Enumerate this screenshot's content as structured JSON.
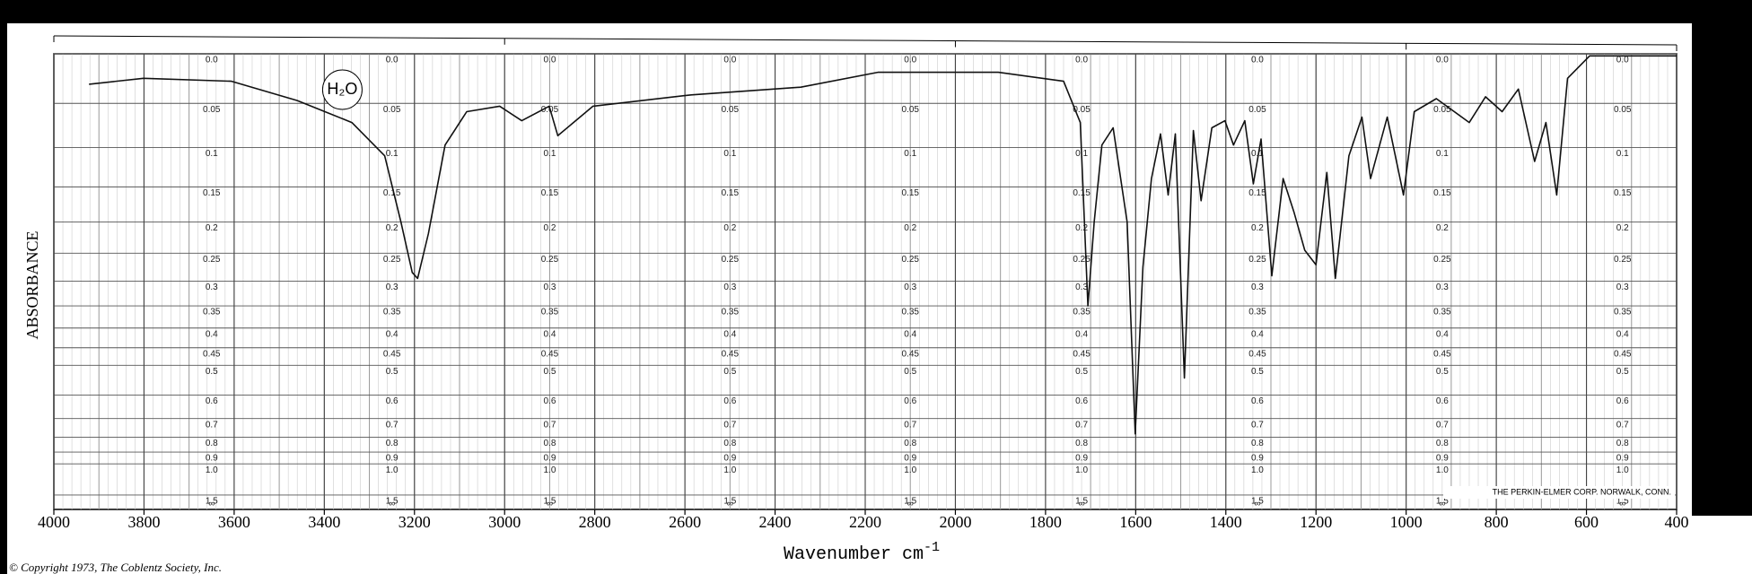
{
  "chart_data": {
    "type": "line",
    "title": "ABSORBANCE",
    "y_axis_label": "ABSORBANCE",
    "x_label": "Wavenumber cm",
    "x_label_sup": "-1",
    "annotation": "H₂O",
    "footer": "© Copyright 1973, The Coblentz Society, Inc.",
    "maker": "THE PERKIN-ELMER CORP. NORWALK, CONN.",
    "y_inf_label": "∞",
    "xlim": [
      4000,
      400
    ],
    "xticks": [
      4000,
      3800,
      3600,
      3400,
      3200,
      3000,
      2800,
      2600,
      2400,
      2200,
      2000,
      1800,
      1600,
      1400,
      1200,
      1000,
      800,
      600,
      400
    ],
    "top_ticks": [
      4000,
      3000,
      2000,
      1000,
      400
    ],
    "yscale": "transmittance",
    "yticks": [
      {
        "value": 0,
        "label": "0.0"
      },
      0.05,
      0.1,
      0.15,
      0.2,
      0.25,
      0.3,
      0.35,
      0.4,
      0.45,
      0.5,
      0.6,
      0.7,
      0.8,
      0.9,
      {
        "value": 1,
        "label": "1.0"
      },
      1.5
    ],
    "grid": true,
    "x": [
      3922,
      3801,
      3606,
      3460,
      3339,
      3266,
      3230,
      3205,
      3193,
      3169,
      3132,
      3084,
      3011,
      2962,
      2901,
      2882,
      2804,
      2586,
      2343,
      2172,
      1905,
      1760,
      1723,
      1706,
      1692,
      1675,
      1650,
      1619,
      1601,
      1584,
      1565,
      1545,
      1528,
      1512,
      1492,
      1472,
      1455,
      1431,
      1402,
      1383,
      1358,
      1339,
      1322,
      1298,
      1273,
      1249,
      1225,
      1200,
      1176,
      1157,
      1127,
      1098,
      1079,
      1042,
      1006,
      982,
      933,
      860,
      824,
      787,
      751,
      715,
      690,
      666,
      642,
      593,
      400
    ],
    "series": [
      {
        "name": "Absorbance",
        "color": "#111111",
        "values": [
          0.03,
          0.024,
          0.027,
          0.047,
          0.071,
          0.11,
          0.2,
          0.284,
          0.295,
          0.218,
          0.097,
          0.059,
          0.053,
          0.069,
          0.053,
          0.086,
          0.053,
          0.041,
          0.033,
          0.018,
          0.018,
          0.027,
          0.071,
          0.35,
          0.2,
          0.097,
          0.077,
          0.2,
          0.78,
          0.274,
          0.139,
          0.084,
          0.161,
          0.084,
          0.54,
          0.08,
          0.169,
          0.077,
          0.069,
          0.097,
          0.069,
          0.146,
          0.09,
          0.29,
          0.139,
          0.185,
          0.245,
          0.27,
          0.131,
          0.295,
          0.11,
          0.065,
          0.139,
          0.065,
          0.161,
          0.059,
          0.045,
          0.071,
          0.043,
          0.059,
          0.035,
          0.117,
          0.071,
          0.161,
          0.024,
          0.002,
          0.002
        ]
      }
    ]
  }
}
